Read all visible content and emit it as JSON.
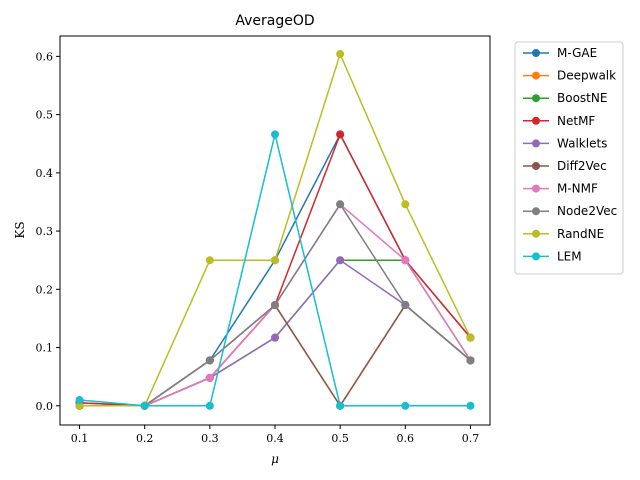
{
  "chart_data": {
    "type": "line",
    "title": "AverageOD",
    "xlabel": "μ",
    "ylabel": "KS",
    "x": [
      0.1,
      0.2,
      0.3,
      0.4,
      0.5,
      0.6,
      0.7
    ],
    "x_tick_labels": [
      "0.1",
      "0.2",
      "0.3",
      "0.4",
      "0.5",
      "0.6",
      "0.7"
    ],
    "y_ticks": [
      0.0,
      0.1,
      0.2,
      0.3,
      0.4,
      0.5,
      0.6
    ],
    "y_tick_labels": [
      "0.0",
      "0.1",
      "0.2",
      "0.3",
      "0.4",
      "0.5",
      "0.6"
    ],
    "xlim": [
      0.07,
      0.73
    ],
    "ylim": [
      -0.033,
      0.635
    ],
    "grid": false,
    "legend_placement": "outside-right",
    "series": [
      {
        "name": "M-GAE",
        "color": "#1f77b4",
        "values": [
          0.005,
          0.0,
          0.078,
          0.25,
          0.466,
          0.25,
          0.117
        ]
      },
      {
        "name": "Deepwalk",
        "color": "#ff7f0e",
        "values": [
          0.0,
          0.0,
          0.048,
          0.173,
          0.0,
          0.173,
          0.078
        ]
      },
      {
        "name": "BoostNE",
        "color": "#2ca02c",
        "values": [
          0.0,
          0.0,
          0.048,
          0.117,
          0.25,
          0.25,
          0.078
        ]
      },
      {
        "name": "NetMF",
        "color": "#d62728",
        "values": [
          0.005,
          0.0,
          0.048,
          0.173,
          0.466,
          0.25,
          0.117
        ]
      },
      {
        "name": "Walklets",
        "color": "#9467bd",
        "values": [
          0.0,
          0.0,
          0.048,
          0.117,
          0.25,
          0.173,
          0.078
        ]
      },
      {
        "name": "Diff2Vec",
        "color": "#8c564b",
        "values": [
          0.0,
          0.0,
          0.078,
          0.173,
          0.0,
          0.173,
          0.078
        ]
      },
      {
        "name": "M-NMF",
        "color": "#e377c2",
        "values": [
          0.0,
          0.0,
          0.048,
          0.173,
          0.346,
          0.25,
          0.078
        ]
      },
      {
        "name": "Node2Vec",
        "color": "#7f7f7f",
        "values": [
          0.0,
          0.0,
          0.078,
          0.173,
          0.346,
          0.173,
          0.078
        ]
      },
      {
        "name": "RandNE",
        "color": "#bcbd22",
        "values": [
          0.0,
          0.0,
          0.25,
          0.25,
          0.604,
          0.346,
          0.117
        ]
      },
      {
        "name": "LEM",
        "color": "#17becf",
        "values": [
          0.01,
          0.0,
          0.0,
          0.466,
          0.0,
          0.0,
          0.0
        ]
      }
    ]
  }
}
